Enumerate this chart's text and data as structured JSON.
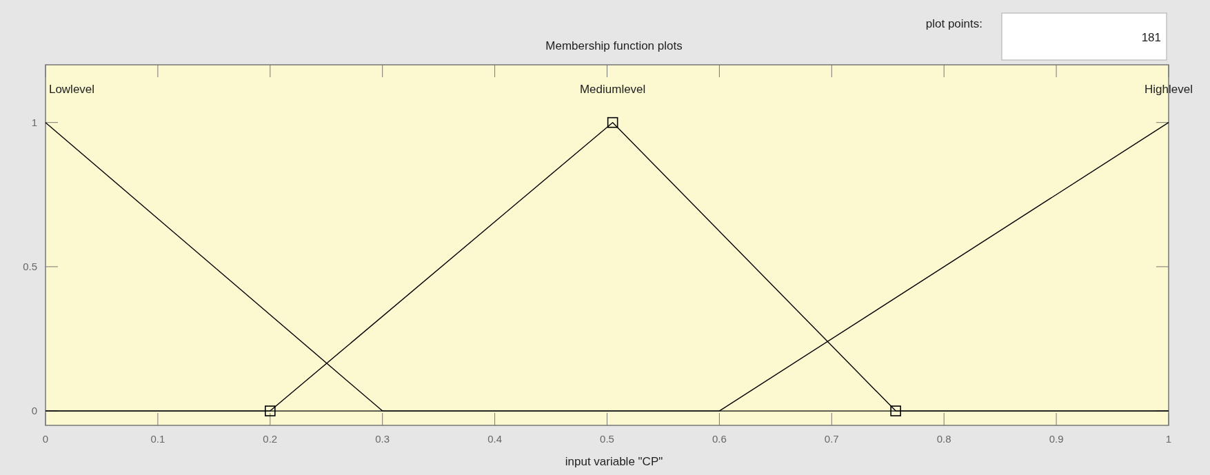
{
  "chart_data": {
    "type": "line",
    "title": "Membership function plots",
    "xlabel": "input variable \"CP\"",
    "annotations": [
      "plot points:",
      "181"
    ],
    "series": [
      {
        "name": "Lowlevel",
        "color": "#000000",
        "x": [
          0,
          0.3,
          1
        ],
        "values": [
          1,
          0,
          0
        ],
        "marker": "none"
      },
      {
        "name": "Mediumlevel",
        "color": "#000000",
        "x": [
          0,
          0.2,
          0.505,
          0.757,
          1
        ],
        "values": [
          0,
          0,
          1,
          0,
          0
        ],
        "marker": "none"
      },
      {
        "name": "Highlevel",
        "color": "#000000",
        "x": [
          0,
          0.6,
          1
        ],
        "values": [
          0,
          0,
          1
        ],
        "marker": "none"
      },
      {
        "type": "scatter",
        "color": "#000000",
        "x": [
          0.2,
          0.505,
          0.757
        ],
        "values": [
          0,
          1,
          0
        ],
        "marker": "square"
      }
    ],
    "xlim": [
      0,
      1
    ],
    "xticks": [
      0,
      0.1,
      0.2,
      0.3,
      0.4,
      0.5,
      0.6,
      0.7,
      0.8,
      0.9,
      1
    ],
    "ylim": [
      -0.05,
      1.2
    ],
    "yticks": [
      0,
      0.5,
      1
    ],
    "grid": false
  }
}
